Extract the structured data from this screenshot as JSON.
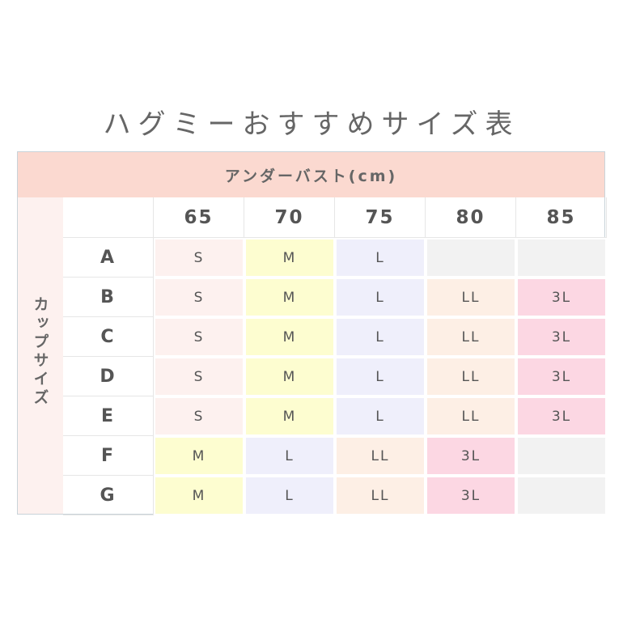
{
  "title": "ハグミーおすすめサイズ表",
  "column_group_label": "アンダーバスト(cm)",
  "row_group_label": "カップサイズ",
  "columns": [
    "65",
    "70",
    "75",
    "80",
    "85"
  ],
  "rows": [
    {
      "cup": "A",
      "sizes": [
        "S",
        "M",
        "L",
        "",
        ""
      ]
    },
    {
      "cup": "B",
      "sizes": [
        "S",
        "M",
        "L",
        "LL",
        "3L"
      ]
    },
    {
      "cup": "C",
      "sizes": [
        "S",
        "M",
        "L",
        "LL",
        "3L"
      ]
    },
    {
      "cup": "D",
      "sizes": [
        "S",
        "M",
        "L",
        "LL",
        "3L"
      ]
    },
    {
      "cup": "E",
      "sizes": [
        "S",
        "M",
        "L",
        "LL",
        "3L"
      ]
    },
    {
      "cup": "F",
      "sizes": [
        "M",
        "L",
        "LL",
        "3L",
        ""
      ]
    },
    {
      "cup": "G",
      "sizes": [
        "M",
        "L",
        "LL",
        "3L",
        ""
      ]
    }
  ],
  "size_colors": {
    "S": "#fdf1ef",
    "M": "#fdfdd0",
    "L": "#efeffb",
    "LL": "#fdefe5",
    "3L": "#fcd7e3",
    "": "#f2f2f2"
  }
}
